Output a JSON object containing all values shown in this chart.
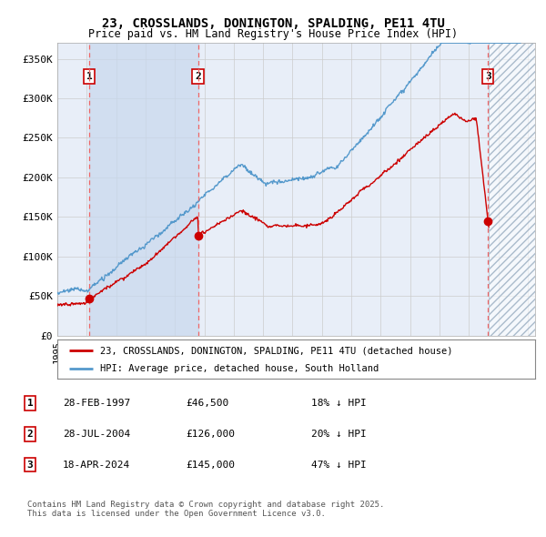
{
  "title_line1": "23, CROSSLANDS, DONINGTON, SPALDING, PE11 4TU",
  "title_line2": "Price paid vs. HM Land Registry's House Price Index (HPI)",
  "ylim": [
    0,
    370000
  ],
  "xlim_start": 1995.0,
  "xlim_end": 2027.5,
  "yticks": [
    0,
    50000,
    100000,
    150000,
    200000,
    250000,
    300000,
    350000
  ],
  "ytick_labels": [
    "£0",
    "£50K",
    "£100K",
    "£150K",
    "£200K",
    "£250K",
    "£300K",
    "£350K"
  ],
  "sale_dates": [
    1997.16,
    2004.57,
    2024.3
  ],
  "sale_prices": [
    46500,
    126000,
    145000
  ],
  "sale_labels": [
    "1",
    "2",
    "3"
  ],
  "legend_entries": [
    {
      "label": "23, CROSSLANDS, DONINGTON, SPALDING, PE11 4TU (detached house)",
      "color": "#cc0000"
    },
    {
      "label": "HPI: Average price, detached house, South Holland",
      "color": "#5599cc"
    }
  ],
  "table_rows": [
    {
      "num": "1",
      "date": "28-FEB-1997",
      "price": "£46,500",
      "hpi": "18% ↓ HPI"
    },
    {
      "num": "2",
      "date": "28-JUL-2004",
      "price": "£126,000",
      "hpi": "20% ↓ HPI"
    },
    {
      "num": "3",
      "date": "18-APR-2024",
      "price": "£145,000",
      "hpi": "47% ↓ HPI"
    }
  ],
  "footnote": "Contains HM Land Registry data © Crown copyright and database right 2025.\nThis data is licensed under the Open Government Licence v3.0.",
  "red_line_color": "#cc0000",
  "blue_line_color": "#5599cc",
  "grid_color": "#cccccc",
  "sale_marker_color": "#cc0000",
  "dashed_line_color": "#ee6666",
  "background_color": "#ffffff",
  "chart_bg_color": "#e8eef8",
  "shade_between_sales_color": "#dce6f5"
}
